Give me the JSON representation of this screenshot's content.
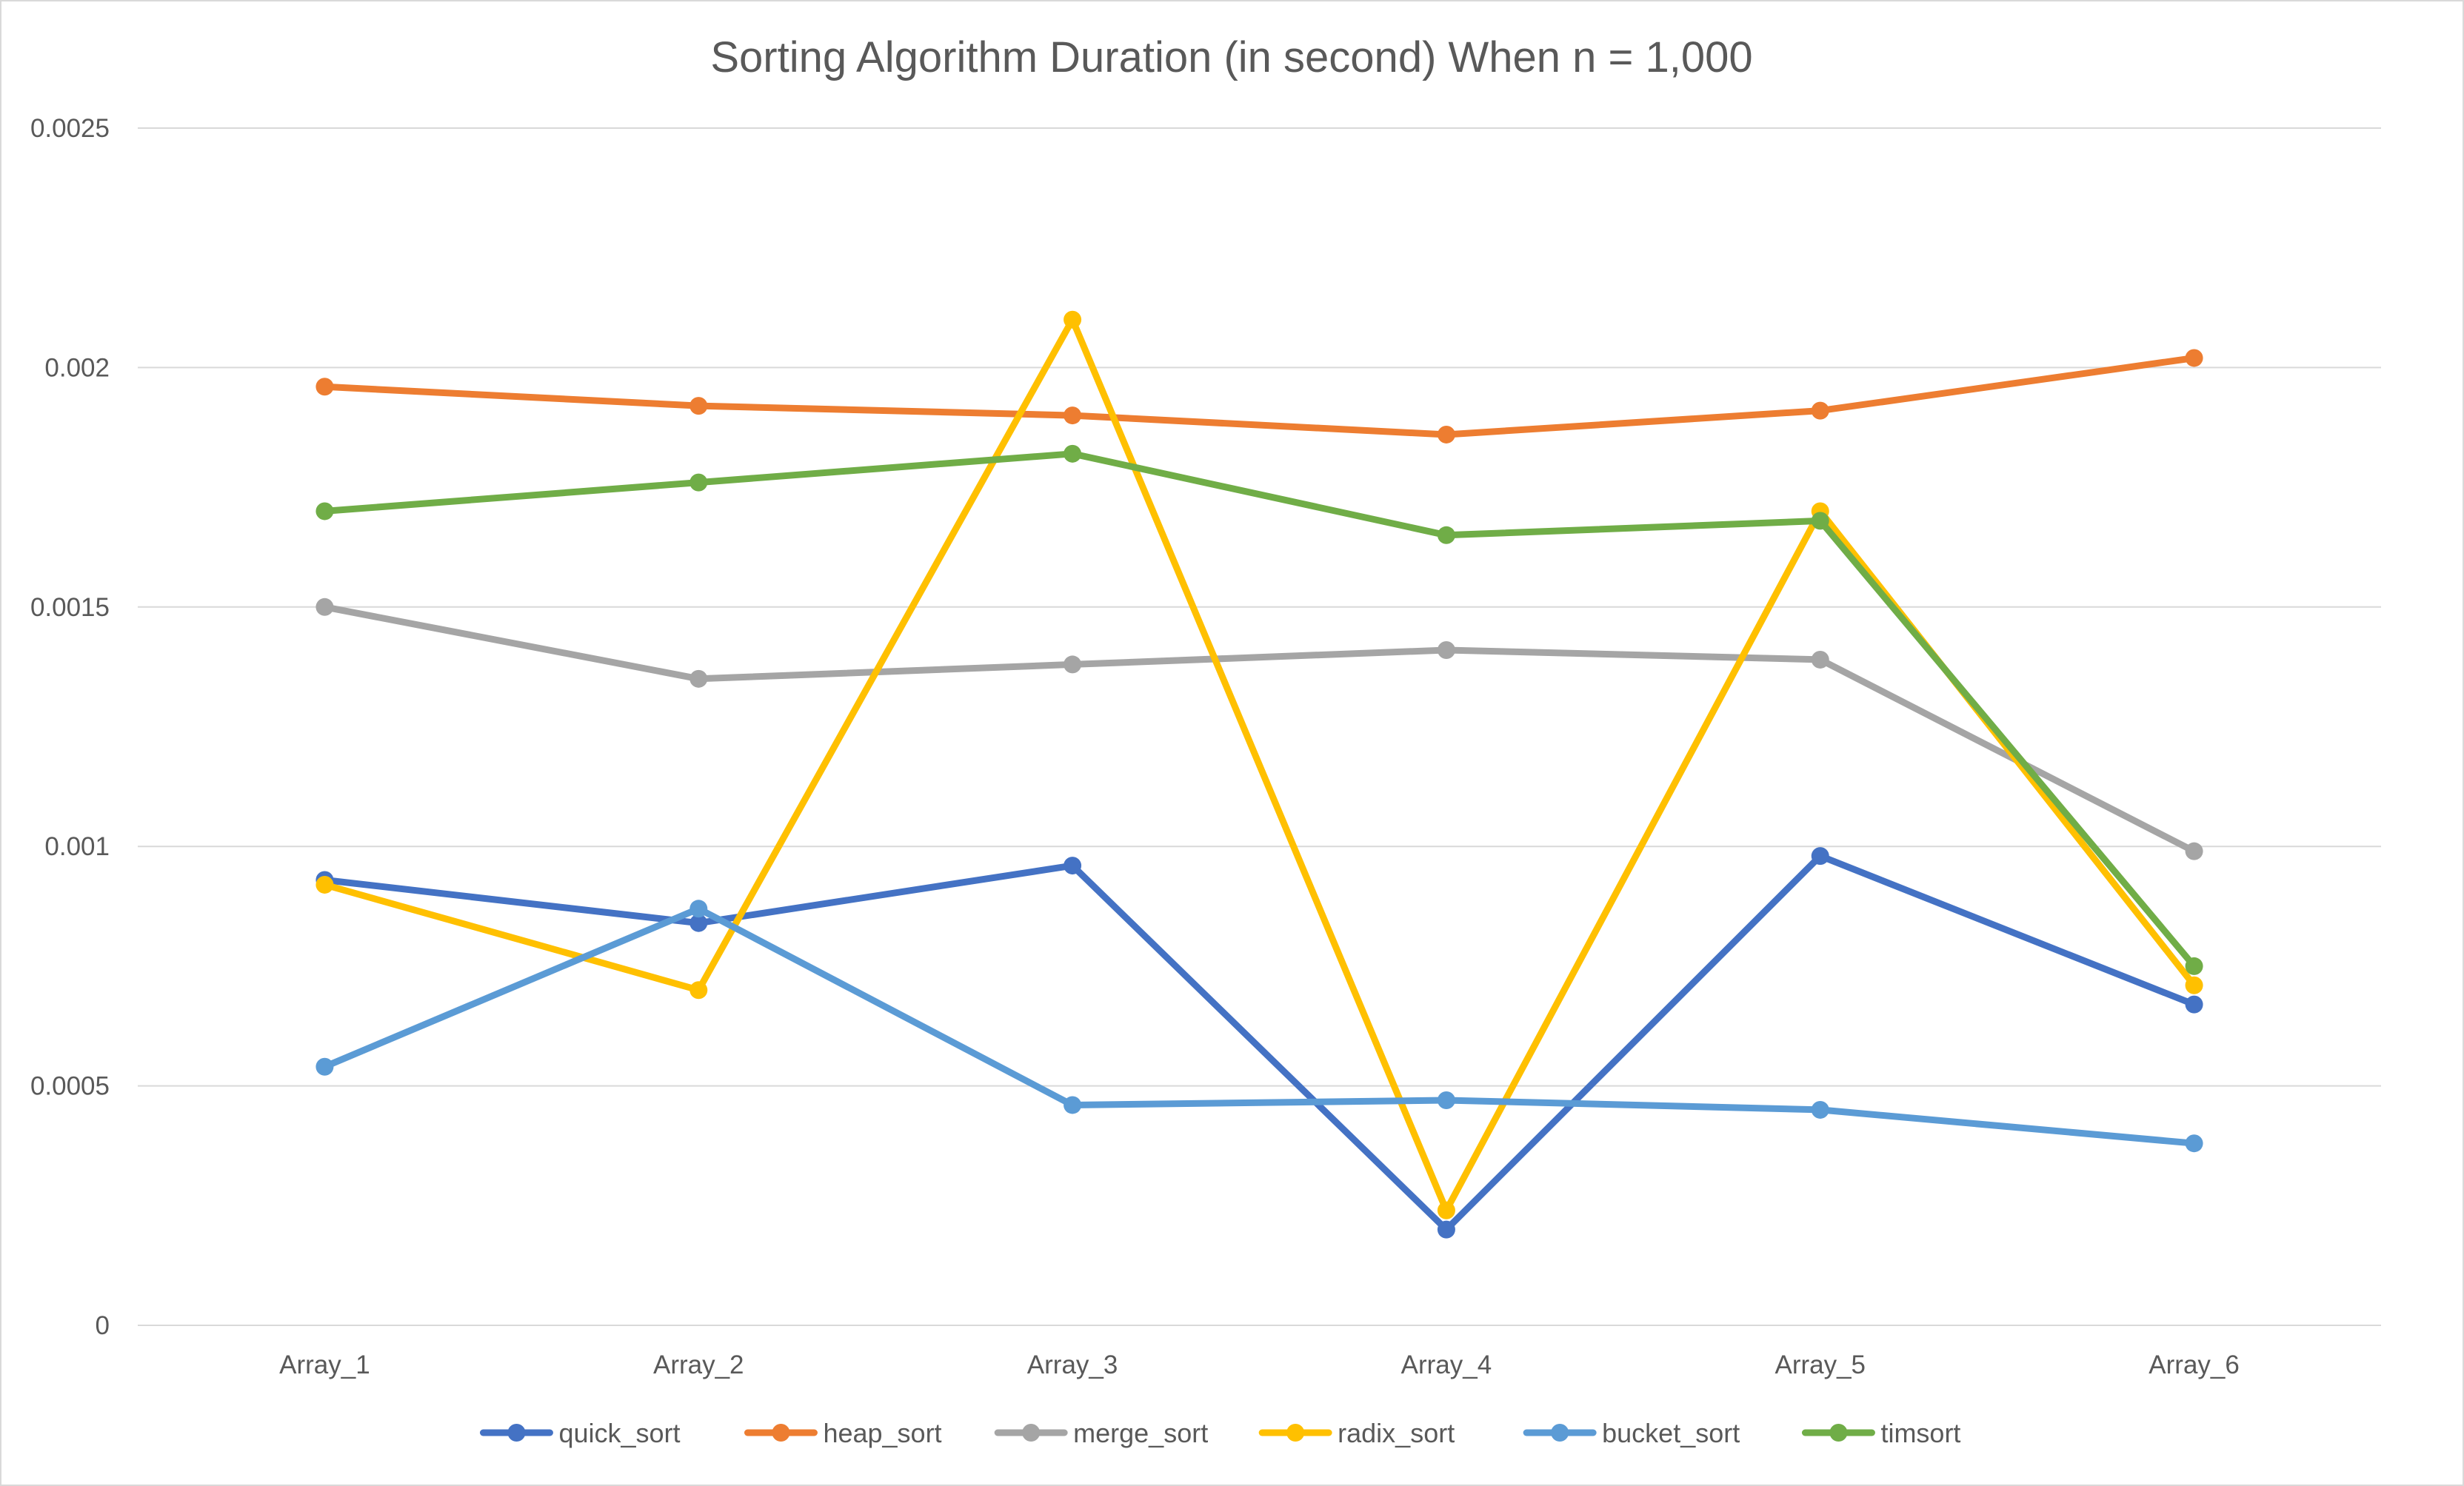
{
  "chart_data": {
    "type": "line",
    "title": "Sorting Algorithm Duration (in second) When n = 1,000",
    "xlabel": "",
    "ylabel": "",
    "categories": [
      "Array_1",
      "Array_2",
      "Array_3",
      "Array_4",
      "Array_5",
      "Array_6"
    ],
    "ylim": [
      0,
      0.0025
    ],
    "yticks": [
      {
        "value": 0,
        "label": "0"
      },
      {
        "value": 0.0005,
        "label": "0.0005"
      },
      {
        "value": 0.001,
        "label": "0.001"
      },
      {
        "value": 0.0015,
        "label": "0.0015"
      },
      {
        "value": 0.002,
        "label": "0.002"
      },
      {
        "value": 0.0025,
        "label": "0.0025"
      }
    ],
    "grid": true,
    "legend_position": "bottom",
    "series": [
      {
        "name": "quick_sort",
        "color": "#4472C4",
        "values": [
          0.00093,
          0.00084,
          0.00096,
          0.0002,
          0.00098,
          0.00067
        ]
      },
      {
        "name": "heap_sort",
        "color": "#ED7D31",
        "values": [
          0.00196,
          0.00192,
          0.0019,
          0.00186,
          0.00191,
          0.00202
        ]
      },
      {
        "name": "merge_sort",
        "color": "#A5A5A5",
        "values": [
          0.0015,
          0.00135,
          0.00138,
          0.00141,
          0.00139,
          0.00099
        ]
      },
      {
        "name": "radix_sort",
        "color": "#FFC000",
        "values": [
          0.00092,
          0.0007,
          0.0021,
          0.00024,
          0.0017,
          0.00071
        ]
      },
      {
        "name": "bucket_sort",
        "color": "#5B9BD5",
        "values": [
          0.00054,
          0.00087,
          0.00046,
          0.00047,
          0.00045,
          0.00038
        ]
      },
      {
        "name": "timsort",
        "color": "#70AD47",
        "values": [
          0.0017,
          0.00176,
          0.00182,
          0.00165,
          0.00168,
          0.00075
        ]
      }
    ]
  }
}
